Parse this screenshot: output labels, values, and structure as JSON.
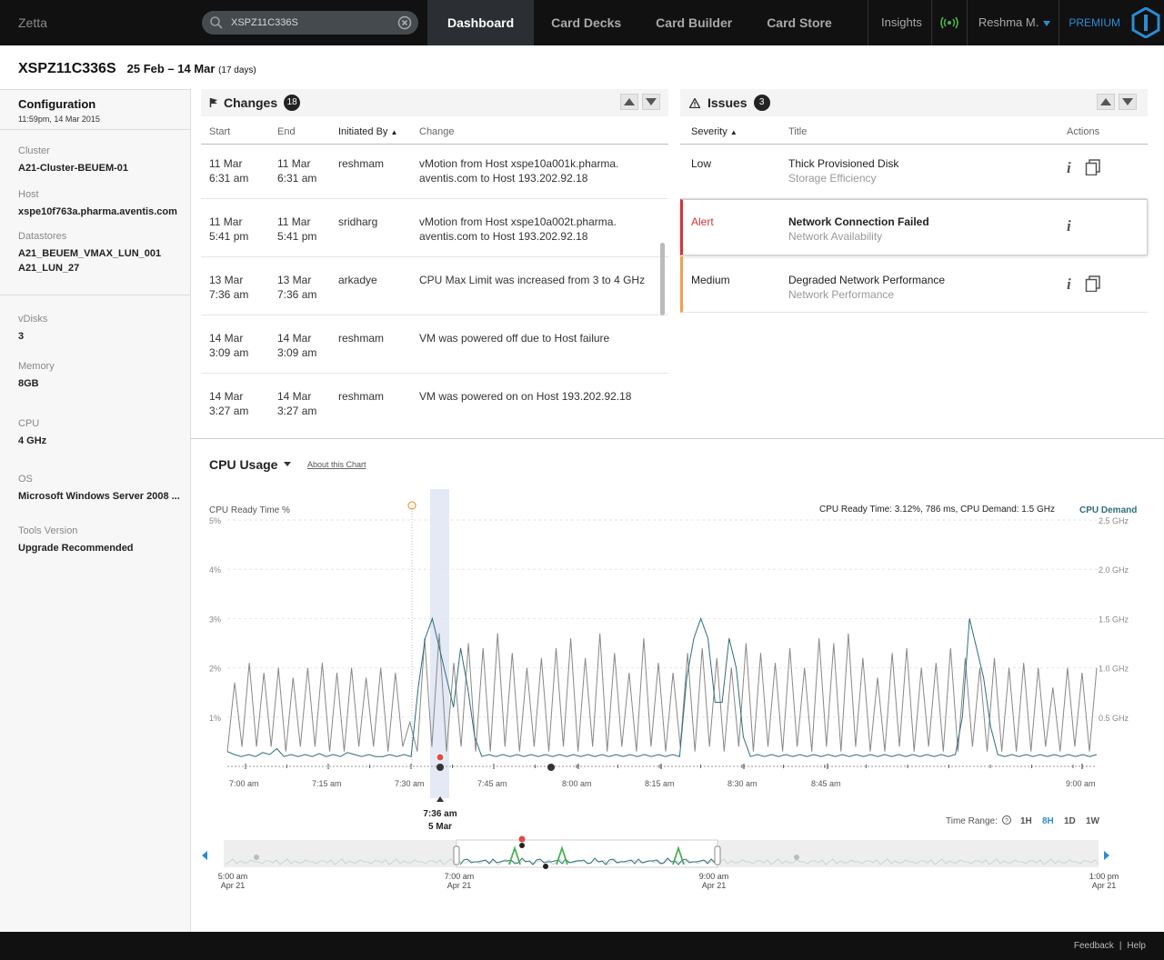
{
  "app": {
    "name": "Zetta"
  },
  "search": {
    "value": "XSPZ11C336S",
    "placeholder": "Search"
  },
  "nav": {
    "tabs": [
      "Dashboard",
      "Card Decks",
      "Card Builder",
      "Card Store"
    ],
    "active": "Dashboard"
  },
  "header_right": {
    "insights": "Insights",
    "user": "Reshma M.",
    "premium": "PREMIUM"
  },
  "title": {
    "vm": "XSPZ11C336S",
    "range": "25 Feb – 14 Mar",
    "days": "(17 days)"
  },
  "config": {
    "title": "Configuration",
    "timestamp": "11:59pm, 14 Mar 2015",
    "props": [
      {
        "label": "Cluster",
        "value": "A21-Cluster-BEUEM-01"
      },
      {
        "label": "Host",
        "value": "xspe10f763a.pharma.aventis.com"
      },
      {
        "label": "Datastores",
        "value": "A21_BEUEM_VMAX_LUN_001",
        "value2": "A21_LUN_27"
      },
      {
        "label": "vDisks",
        "value": "3"
      },
      {
        "label": "Memory",
        "value": "8GB"
      },
      {
        "label": "CPU",
        "value": "4 GHz"
      },
      {
        "label": "OS",
        "value": "Microsoft Windows Server 2008 ..."
      },
      {
        "label": "Tools Version",
        "value": "Upgrade Recommended"
      }
    ]
  },
  "changes": {
    "title": "Changes",
    "count": "18",
    "columns": [
      "Start",
      "End",
      "Initiated By",
      "Change"
    ],
    "rows": [
      {
        "start_date": "11 Mar",
        "start_time": "6:31 am",
        "end_date": "11 Mar",
        "end_time": "6:31 am",
        "by": "reshmam",
        "change1": "vMotion from Host xspe10a001k.pharma.",
        "change2": "aventis.com to Host 193.202.92.18"
      },
      {
        "start_date": "11 Mar",
        "start_time": "5:41 pm",
        "end_date": "11 Mar",
        "end_time": "5:41 pm",
        "by": "sridharg",
        "change1": "vMotion from Host xspe10a002t.pharma.",
        "change2": "aventis.com to Host 193.202.92.18"
      },
      {
        "start_date": "13 Mar",
        "start_time": "7:36 am",
        "end_date": "13 Mar",
        "end_time": "7:36 am",
        "by": "arkadye",
        "change1": "CPU Max Limit was increased from 3 to 4 GHz",
        "change2": ""
      },
      {
        "start_date": "14 Mar",
        "start_time": "3:09 am",
        "end_date": "14 Mar",
        "end_time": "3:09 am",
        "by": "reshmam",
        "change1": "VM was powered off due to Host failure",
        "change2": ""
      },
      {
        "start_date": "14 Mar",
        "start_time": "3:27 am",
        "end_date": "14 Mar",
        "end_time": "3:27 am",
        "by": "reshmam",
        "change1": "VM was powered on on Host 193.202.92.18",
        "change2": ""
      }
    ]
  },
  "issues": {
    "title": "Issues",
    "count": "3",
    "columns": [
      "Severity",
      "Title",
      "Actions"
    ],
    "rows": [
      {
        "severity": "Low",
        "title": "Thick Provisioned Disk",
        "sub": "Storage Efficiency"
      },
      {
        "severity": "Alert",
        "title": "Network Connection Failed",
        "sub": "Network Availability"
      },
      {
        "severity": "Medium",
        "title": "Degraded Network Performance",
        "sub": "Network Performance"
      }
    ],
    "colors": {
      "alert": "#d8303a",
      "medium": "#f0a04b"
    }
  },
  "chart": {
    "title": "CPU Usage",
    "about": "About this Chart",
    "left_axis_label": "CPU Ready Time %",
    "right_axis_label": "CPU Demand",
    "readout": "CPU Ready Time: 3.12%, 786 ms, CPU Demand: 1.5 GHz",
    "marker_time": "7:36 am",
    "marker_date": "5 Mar",
    "time_range_label": "Time Range:",
    "time_ranges": [
      "1H",
      "8H",
      "1D",
      "1W"
    ],
    "time_range_active": "8H",
    "nav_labels": [
      {
        "t": "5:00 am",
        "d": "Apr 21"
      },
      {
        "t": "7:00 am",
        "d": "Apr 21"
      },
      {
        "t": "9:00 am",
        "d": "Apr 21"
      },
      {
        "t": "1:00 pm",
        "d": "Apr 21"
      }
    ],
    "colors": {
      "ready": "#888888",
      "demand": "#2e6e7a",
      "highlight": "#dde4f4",
      "nav_green": "#4caf50"
    }
  },
  "chart_data": {
    "type": "line",
    "x_ticks": [
      "7:00 am",
      "7:15 am",
      "7:30 am",
      "7:45 am",
      "8:00 am",
      "8:15 am",
      "8:30 am",
      "8:45 am",
      "9:00 am"
    ],
    "y_left_ticks": [
      "1%",
      "2%",
      "3%",
      "4%",
      "5%"
    ],
    "y_right_ticks": [
      "0.5 GHz",
      "1.0 GHz",
      "1.5 GHz",
      "2.0 GHz",
      "2.5 GHz"
    ],
    "ylim_left": [
      0,
      5
    ],
    "ylim_right": [
      0,
      2.5
    ],
    "series": [
      {
        "name": "CPU Ready Time %",
        "axis": "left",
        "values": [
          0.3,
          1.7,
          0.4,
          2.1,
          0.4,
          1.9,
          0.4,
          2.0,
          0.3,
          1.8,
          0.4,
          2.0,
          0.4,
          2.1,
          0.3,
          1.9,
          0.3,
          2.0,
          0.4,
          1.8,
          0.4,
          2.0,
          0.3,
          1.9,
          0.4,
          0.9,
          0.3,
          2.6,
          0.4,
          2.7,
          0.3,
          2.1,
          0.4,
          2.5,
          0.3,
          2.4,
          0.3,
          2.7,
          0.4,
          2.3,
          0.3,
          2.0,
          0.4,
          2.2,
          0.3,
          2.4,
          0.4,
          2.6,
          0.3,
          2.2,
          0.4,
          2.7,
          0.3,
          2.3,
          0.4,
          1.9,
          0.3,
          2.6,
          0.4,
          2.1,
          0.3,
          1.9,
          0.4,
          2.3,
          0.3,
          2.4,
          0.4,
          2.2,
          0.3,
          2.0,
          0.4,
          2.5,
          0.3,
          2.3,
          0.4,
          2.1,
          0.3,
          2.4,
          0.4,
          2.0,
          0.3,
          2.6,
          0.4,
          2.5,
          0.3,
          2.7,
          0.4,
          2.2,
          0.3,
          1.8,
          0.3,
          2.3,
          0.4,
          2.4,
          0.3,
          2.0,
          0.4,
          2.1,
          0.3,
          2.4,
          0.3,
          2.2,
          0.4,
          2.0,
          0.3,
          2.2,
          0.3,
          2.0,
          0.3,
          2.1,
          0.3,
          2.0,
          0.4,
          1.6,
          0.3,
          2.0,
          0.4,
          1.9,
          0.3,
          2.0
        ]
      },
      {
        "name": "CPU Demand",
        "axis": "right",
        "values": [
          0.15,
          0.12,
          0.1,
          0.12,
          0.1,
          0.14,
          0.12,
          0.18,
          0.1,
          0.12,
          0.1,
          0.12,
          0.1,
          0.13,
          0.1,
          0.12,
          0.1,
          0.14,
          0.12,
          0.1,
          0.12,
          0.1,
          0.1,
          0.12,
          0.1,
          0.12,
          0.1,
          0.8,
          1.3,
          1.5,
          1.2,
          0.9,
          0.6,
          1.2,
          0.8,
          0.3,
          0.1,
          0.12,
          0.1,
          0.12,
          0.1,
          0.12,
          0.1,
          0.12,
          0.1,
          0.12,
          0.1,
          0.12,
          0.1,
          0.12,
          0.1,
          0.12,
          0.1,
          0.12,
          0.1,
          0.12,
          0.1,
          0.12,
          0.1,
          0.12,
          0.1,
          0.12,
          0.1,
          0.12,
          0.1,
          0.9,
          1.3,
          1.5,
          1.3,
          0.65,
          0.65,
          1.3,
          1.0,
          0.3,
          0.1,
          0.12,
          0.1,
          0.12,
          0.1,
          0.12,
          0.1,
          0.12,
          0.1,
          0.12,
          0.1,
          0.12,
          0.1,
          0.12,
          0.1,
          0.12,
          0.1,
          0.12,
          0.1,
          0.12,
          0.1,
          0.12,
          0.1,
          0.12,
          0.1,
          0.12,
          0.1,
          0.12,
          0.1,
          0.12,
          0.5,
          1.5,
          1.2,
          0.9,
          0.4,
          0.12,
          0.1,
          0.12,
          0.1,
          0.12,
          0.1,
          0.12,
          0.1,
          0.12,
          0.1,
          0.12,
          0.1,
          0.12,
          0.1,
          0.12
        ]
      }
    ]
  },
  "footer": {
    "feedback": "Feedback",
    "sep": "|",
    "help": "Help"
  }
}
